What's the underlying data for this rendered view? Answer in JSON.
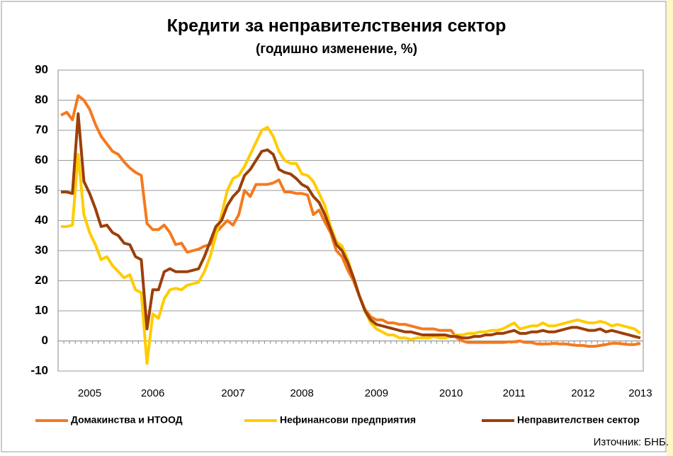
{
  "chart_data": {
    "type": "line",
    "title": "Кредити за неправителствения сектор",
    "subtitle": "(годишно изменение, %)",
    "source": "Източник: БНБ.",
    "categories": [
      null,
      null,
      null,
      null,
      null,
      "2005",
      null,
      null,
      null,
      null,
      null,
      null,
      null,
      null,
      null,
      null,
      "2006",
      null,
      null,
      null,
      null,
      null,
      null,
      null,
      null,
      null,
      null,
      null,
      null,
      null,
      "2007",
      null,
      null,
      null,
      null,
      null,
      null,
      null,
      null,
      null,
      null,
      null,
      "2008",
      null,
      null,
      null,
      null,
      null,
      null,
      null,
      null,
      null,
      null,
      null,
      null,
      "2009",
      null,
      null,
      null,
      null,
      null,
      null,
      null,
      null,
      null,
      null,
      null,
      null,
      "2010",
      null,
      null,
      null,
      null,
      null,
      null,
      null,
      null,
      null,
      null,
      "2011",
      null,
      null,
      null,
      null,
      null,
      null,
      null,
      null,
      null,
      null,
      null,
      "2012",
      null,
      null,
      null,
      null,
      null,
      null,
      null,
      null,
      null,
      "2013"
    ],
    "series": [
      {
        "name": "Домакинства и НТООД",
        "color": "#f47a1f",
        "values": [
          75,
          76,
          73.5,
          81.5,
          80,
          77,
          72,
          68,
          65.5,
          63,
          62,
          59.5,
          57.5,
          56,
          55,
          39,
          37,
          37,
          38.5,
          36,
          32,
          32.5,
          29.5,
          30,
          30.5,
          31.5,
          32,
          36,
          38,
          40,
          38.5,
          42,
          50,
          48,
          52,
          52,
          52,
          52.5,
          53.5,
          49.5,
          49.5,
          49,
          49,
          48.5,
          42,
          43.5,
          39.5,
          36,
          30,
          28,
          23.5,
          20,
          15,
          10.5,
          8,
          7,
          7,
          6,
          6,
          5.5,
          5.5,
          5,
          4.5,
          4,
          4,
          4,
          3.5,
          3.5,
          3.5,
          1,
          0,
          -0.5,
          -0.5,
          -0.5,
          -0.5,
          -0.5,
          -0.5,
          -0.5,
          -0.3,
          -0.3,
          0,
          -0.5,
          -0.5,
          -1,
          -1,
          -1,
          -0.8,
          -1,
          -1,
          -1.3,
          -1.5,
          -1.5,
          -1.8,
          -1.8,
          -1.5,
          -1.2,
          -0.8,
          -0.8,
          -1,
          -1.2,
          -1.2,
          -0.8
        ]
      },
      {
        "name": "Нефинансови предприятия",
        "color": "#ffcc00",
        "values": [
          38,
          38,
          38.5,
          62,
          42,
          36,
          32,
          27,
          28,
          25,
          23,
          21,
          22,
          17,
          16,
          -7.5,
          9,
          7.5,
          14,
          17,
          17.5,
          17,
          18.5,
          19,
          19.5,
          23,
          28,
          35,
          42,
          50,
          54,
          55,
          58,
          62,
          66,
          70,
          71,
          68,
          63,
          60,
          59,
          59,
          55.5,
          55,
          53,
          49,
          45,
          38,
          33,
          31.5,
          27,
          21,
          15,
          10,
          6,
          4,
          3,
          2,
          2,
          1,
          1,
          0.5,
          1,
          1,
          1,
          1.5,
          1,
          1,
          1.5,
          2,
          2,
          2.5,
          2.5,
          3,
          3,
          3.5,
          3.5,
          4,
          5,
          6,
          4,
          4.5,
          5,
          5,
          6,
          5,
          5,
          5.5,
          6,
          6.5,
          7,
          6.5,
          6,
          6,
          6.5,
          6,
          5,
          5.5,
          5,
          4.5,
          4,
          2.5
        ]
      },
      {
        "name": "Неправителствен сектор",
        "color": "#9c3f0a",
        "values": [
          49.5,
          49.5,
          49,
          75.5,
          53,
          49,
          44,
          38,
          38.5,
          36,
          35,
          32.5,
          32,
          28,
          27,
          4,
          17,
          17,
          23,
          24,
          23,
          23,
          23,
          23.5,
          24,
          28,
          33,
          38,
          40,
          45,
          48,
          50,
          55,
          57,
          60,
          63,
          63.5,
          62,
          57,
          56,
          55.5,
          54,
          52,
          51,
          48,
          46,
          42,
          37,
          32,
          30,
          26,
          21,
          15,
          10,
          7,
          5.5,
          5,
          4.5,
          4,
          3.5,
          3,
          3,
          2.5,
          2,
          2,
          2,
          2,
          2,
          1.5,
          1.5,
          1,
          1,
          1.5,
          1.5,
          2,
          2,
          2.5,
          2.5,
          3,
          3.5,
          2.5,
          2.5,
          3,
          3,
          3.5,
          3,
          3,
          3.5,
          4,
          4.5,
          4.5,
          4,
          3.5,
          3.5,
          4,
          3,
          3.5,
          3,
          2.5,
          2,
          1.5,
          1
        ]
      }
    ],
    "ylim": [
      -10,
      90
    ],
    "yticks": [
      -10,
      0,
      10,
      20,
      30,
      40,
      50,
      60,
      70,
      80,
      90
    ],
    "grid": true,
    "legend": "bottom"
  }
}
